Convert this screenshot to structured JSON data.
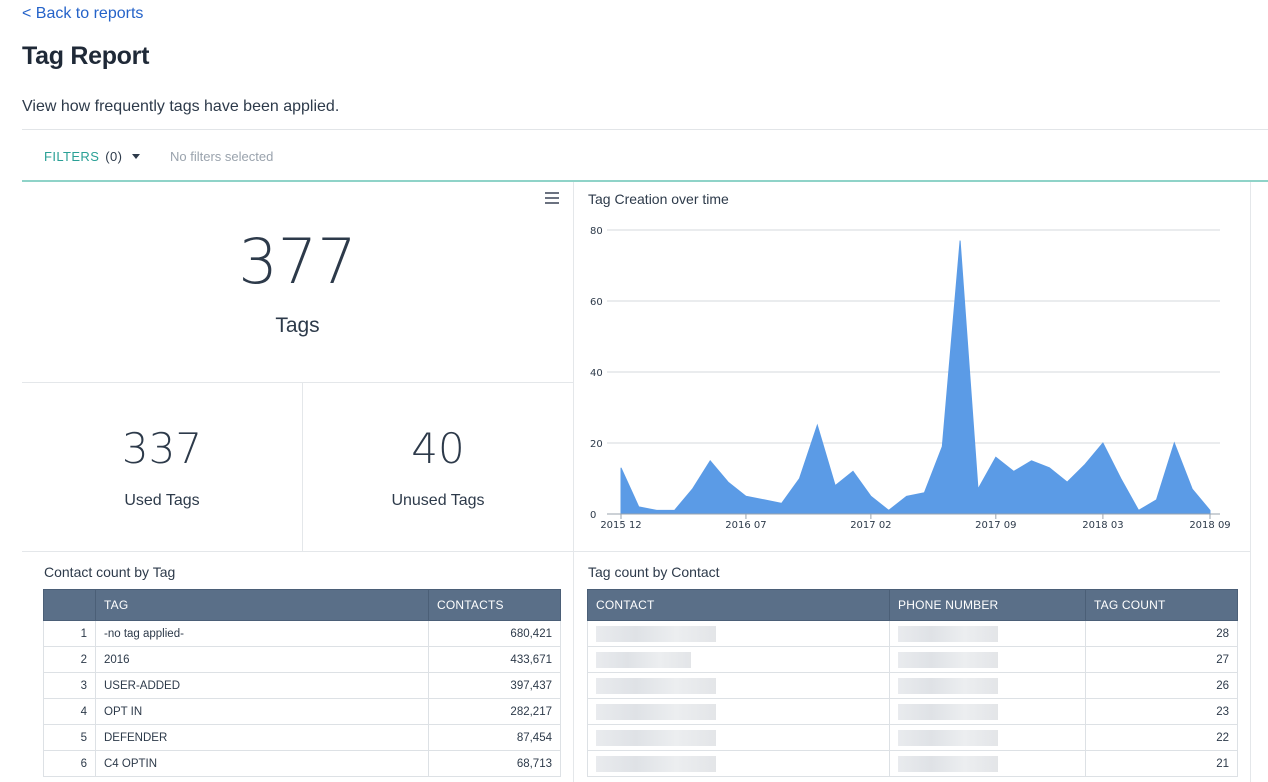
{
  "nav": {
    "back_label": "< Back to reports"
  },
  "page": {
    "title": "Tag Report",
    "description": "View how frequently tags have been applied."
  },
  "filters": {
    "label": "FILTERS",
    "count": "(0)",
    "status": "No filters selected"
  },
  "stats": {
    "total": {
      "value": "377",
      "label": "Tags"
    },
    "used": {
      "value": "337",
      "label": "Used Tags"
    },
    "unused": {
      "value": "40",
      "label": "Unused Tags"
    }
  },
  "chart_data": {
    "type": "area",
    "title": "Tag Creation over time",
    "ylim": [
      0,
      80
    ],
    "yticks": [
      0,
      20,
      40,
      60,
      80
    ],
    "xtick_labels": [
      "2015 12",
      "2016 07",
      "2017 02",
      "2017 09",
      "2018 03",
      "2018 09"
    ],
    "xtick_indices": [
      0,
      7,
      14,
      21,
      27,
      33
    ],
    "grid": true,
    "color": "#5b9be6",
    "series": [
      {
        "values": [
          13,
          2,
          1,
          1,
          7,
          15,
          9,
          5,
          4,
          3,
          10,
          25,
          8,
          12,
          5,
          1,
          5,
          6,
          19,
          77,
          7,
          16,
          12,
          15,
          13,
          9,
          14,
          20,
          10,
          1,
          4,
          20,
          7,
          1
        ]
      }
    ]
  },
  "contact_by_tag": {
    "title": "Contact count by Tag",
    "columns": [
      "",
      "TAG",
      "CONTACTS"
    ],
    "rows": [
      {
        "idx": "1",
        "tag": "-no tag applied-",
        "contacts": "680,421"
      },
      {
        "idx": "2",
        "tag": "2016",
        "contacts": "433,671"
      },
      {
        "idx": "3",
        "tag": "USER-ADDED",
        "contacts": "397,437"
      },
      {
        "idx": "4",
        "tag": "OPT IN",
        "contacts": "282,217"
      },
      {
        "idx": "5",
        "tag": "DEFENDER",
        "contacts": "87,454"
      },
      {
        "idx": "6",
        "tag": "C4 OPTIN",
        "contacts": "68,713"
      }
    ]
  },
  "tag_by_contact": {
    "title": "Tag count by Contact",
    "columns": [
      "CONTACT",
      "PHONE NUMBER",
      "TAG COUNT"
    ],
    "rows": [
      {
        "count": "28"
      },
      {
        "count": "27"
      },
      {
        "count": "26"
      },
      {
        "count": "23"
      },
      {
        "count": "22"
      },
      {
        "count": "21"
      }
    ]
  }
}
